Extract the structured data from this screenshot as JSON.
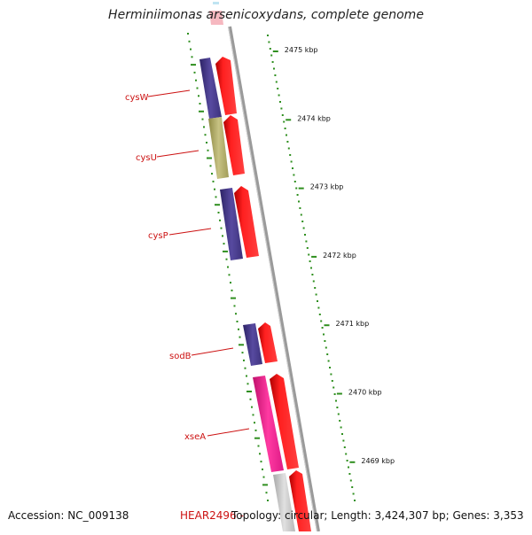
{
  "title": "Herminiimonas arsenicoxydans, complete genome",
  "scale": {
    "unit": "kbp",
    "ticks": [
      2475,
      2474,
      2473,
      2472,
      2471,
      2470,
      2469
    ],
    "tick_labels": [
      "2475 kbp",
      "2474 kbp",
      "2473 kbp",
      "2472 kbp",
      "2471 kbp",
      "2470 kbp",
      "2469 kbp"
    ]
  },
  "genes": [
    {
      "label": "cysW",
      "strand_color": "#4a3d8c"
    },
    {
      "label": "cysU",
      "strand_color": "#b5b06a"
    },
    {
      "label": "cysP",
      "strand_color": "#4a3d8c"
    },
    {
      "label": "sodB",
      "strand_color": "#4a3d8c"
    },
    {
      "label": "xseA",
      "strand_color": "#ee1d8a"
    }
  ],
  "footer": {
    "accession": "Accession: NC_009138",
    "locus": "HEAR2496",
    "locus_suffix": " - ",
    "topology": "Topology: circular; Length: 3,424,307 bp; Genes: 3,353"
  },
  "colors": {
    "arrow_red": "#ff1a1a",
    "label_red": "#cc1111",
    "tick_green": "#2f8f1f",
    "backbone_gray": "#888888",
    "unlabeled_gray": "#c8c8c8",
    "pink": "#ee1d8a"
  }
}
